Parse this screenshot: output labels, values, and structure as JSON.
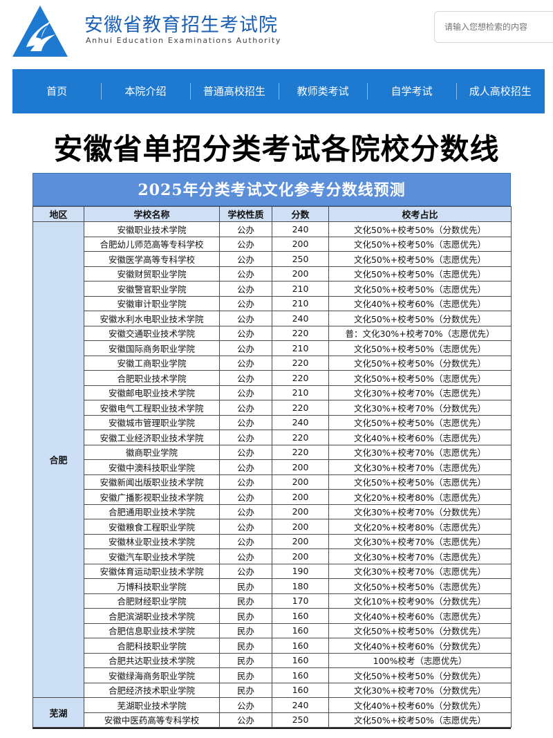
{
  "header": {
    "title": "安徽省教育招生考试院",
    "subtitle": "Anhui Education Examinations Authority",
    "search_placeholder": "请输入您想检索的内容"
  },
  "nav": {
    "items": [
      {
        "label": "首页"
      },
      {
        "label": "本院介绍"
      },
      {
        "label": "普通高校招生"
      },
      {
        "label": "教师类考试"
      },
      {
        "label": "自学考试"
      },
      {
        "label": "成人高校招生"
      }
    ]
  },
  "headline": "安徽省单招分类考试各院校分数线",
  "table": {
    "title": "2025年分类考试文化参考分数线预测",
    "columns": [
      "地区",
      "学校名称",
      "学校性质",
      "分数",
      "校考占比"
    ],
    "groups": [
      {
        "region": "合肥",
        "rows": [
          [
            "安徽职业技术学院",
            "公办",
            "240",
            "文化50%+校考50%（分数优先）"
          ],
          [
            "合肥幼儿师范高等专科学校",
            "公办",
            "200",
            "文化50%+校考50%（志愿优先）"
          ],
          [
            "安徽医学高等专科学校",
            "公办",
            "250",
            "文化50%+校考50%（志愿优先）"
          ],
          [
            "安徽财贸职业学院",
            "公办",
            "200",
            "文化50%+校考50%（志愿优先）"
          ],
          [
            "安徽警官职业学院",
            "公办",
            "210",
            "文化50%+校考50%（志愿优先）"
          ],
          [
            "安徽审计职业学院",
            "公办",
            "210",
            "文化40%+校考60%（志愿优先）"
          ],
          [
            "安徽水利水电职业技术学院",
            "公办",
            "240",
            "文化50%+校考50%（分数优先）"
          ],
          [
            "安徽交通职业技术学院",
            "公办",
            "220",
            "普：文化30%+校考70%（志愿优先）"
          ],
          [
            "安徽国际商务职业学院",
            "公办",
            "210",
            "文化50%+校考50%（志愿优先）"
          ],
          [
            "安徽工商职业学院",
            "公办",
            "220",
            "文化50%+校考50%（分数优先）"
          ],
          [
            "合肥职业技术学院",
            "公办",
            "220",
            "文化50%+校考50%（志愿优先）"
          ],
          [
            "安徽邮电职业技术学院",
            "公办",
            "210",
            "文化30%+校考70%（志愿优先）"
          ],
          [
            "安徽电气工程职业技术学院",
            "公办",
            "220",
            "文化30%+校考70%（分数优先）"
          ],
          [
            "安徽城市管理职业学院",
            "公办",
            "240",
            "文化50%+校考50%（志愿优先）"
          ],
          [
            "安徽工业经济职业技术学院",
            "公办",
            "220",
            "文化40%+校考60%（志愿优先）"
          ],
          [
            "徽商职业学院",
            "公办",
            "220",
            "文化30%+校考70%（志愿优先）"
          ],
          [
            "安徽中澳科技职业学院",
            "公办",
            "200",
            "文化30%+校考70%（志愿优先）"
          ],
          [
            "安徽新闻出版职业技术学院",
            "公办",
            "200",
            "文化50%+校考50%（志愿优先）"
          ],
          [
            "安徽广播影视职业技术学院",
            "公办",
            "200",
            "文化20%+校考80%（志愿优先）"
          ],
          [
            "合肥通用职业技术学院",
            "公办",
            "200",
            "文化30%+校考70%（分数优先）"
          ],
          [
            "安徽粮食工程职业学院",
            "公办",
            "200",
            "文化20%+校考80%（志愿优先）"
          ],
          [
            "安徽林业职业技术学院",
            "公办",
            "200",
            "文化30%+校考70%（志愿优先）"
          ],
          [
            "安徽汽车职业技术学院",
            "公办",
            "200",
            "文化30%+校考70%（志愿优先）"
          ],
          [
            "安徽体育运动职业技术学院",
            "公办",
            "190",
            "文化30%+校考70%（志愿优先）"
          ],
          [
            "万博科技职业学院",
            "民办",
            "180",
            "文化50%+校考50%（志愿优先）"
          ],
          [
            "合肥财经职业学院",
            "民办",
            "170",
            "文化10%+校考90%（分数优先）"
          ],
          [
            "合肥滨湖职业技术学院",
            "民办",
            "160",
            "文化40%+校考60%（志愿优先）"
          ],
          [
            "合肥信息职业技术学院",
            "民办",
            "160",
            "文化50%+校考50%（分数优先）"
          ],
          [
            "合肥科技职业学院",
            "民办",
            "160",
            "文化40%+校考60%（分数优先）"
          ],
          [
            "合肥共达职业技术学院",
            "民办",
            "160",
            "100%校考（志愿优先）"
          ],
          [
            "安徽绿海商务职业学院",
            "民办",
            "160",
            "文化50%+校考50%（分数优先）"
          ],
          [
            "合肥经济技术职业学院",
            "民办",
            "160",
            "文化30%+校考70%（分数优先）"
          ]
        ]
      },
      {
        "region": "芜湖",
        "rows": [
          [
            "芜湖职业技术学院",
            "公办",
            "240",
            "文化40%+校考60%（分数优先）"
          ],
          [
            "安徽中医药高等专科学校",
            "公办",
            "250",
            "文化50%+校考50%（志愿优先）"
          ]
        ]
      }
    ]
  }
}
